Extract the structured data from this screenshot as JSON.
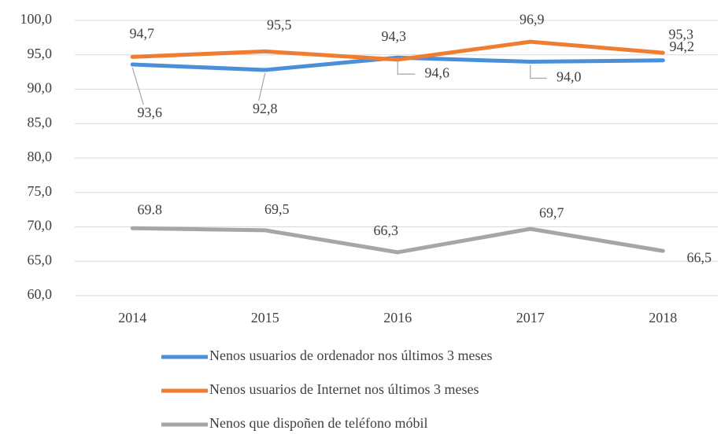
{
  "chart_data": {
    "type": "line",
    "categories": [
      "2014",
      "2015",
      "2016",
      "2017",
      "2018"
    ],
    "series": [
      {
        "name": "Nenos usuarios de ordenador nos  últimos 3 meses",
        "color": "#4a8fd8",
        "values": [
          93.6,
          92.8,
          94.6,
          94.0,
          94.2
        ],
        "value_labels": [
          "93,6",
          "92,8",
          "94,6",
          "94,0",
          "94,2"
        ]
      },
      {
        "name": "Nenos usuarios de Internet nos últimos 3 meses",
        "color": "#ef7d31",
        "values": [
          94.7,
          95.5,
          94.3,
          96.9,
          95.3
        ],
        "value_labels": [
          "94,7",
          "95,5",
          "94,3",
          "96,9",
          "95,3"
        ]
      },
      {
        "name": "Nenos que dispoñen de teléfono móbil",
        "color": "#a6a6a6",
        "values": [
          69.8,
          69.5,
          66.3,
          69.7,
          66.5
        ],
        "value_labels": [
          "69.8",
          "69,5",
          "66,3",
          "69,7",
          "66,5"
        ]
      }
    ],
    "ylim": [
      60,
      100
    ],
    "yticks": [
      {
        "value": 60,
        "label": "60,0"
      },
      {
        "value": 65,
        "label": "65,0"
      },
      {
        "value": 70,
        "label": "70,0"
      },
      {
        "value": 75,
        "label": "75,0"
      },
      {
        "value": 80,
        "label": "80,0"
      },
      {
        "value": 85,
        "label": "85,0"
      },
      {
        "value": 90,
        "label": "90,0"
      },
      {
        "value": 95,
        "label": "95,0"
      },
      {
        "value": 100,
        "label": "100,0"
      }
    ],
    "grid": true,
    "legend": "bottom"
  }
}
